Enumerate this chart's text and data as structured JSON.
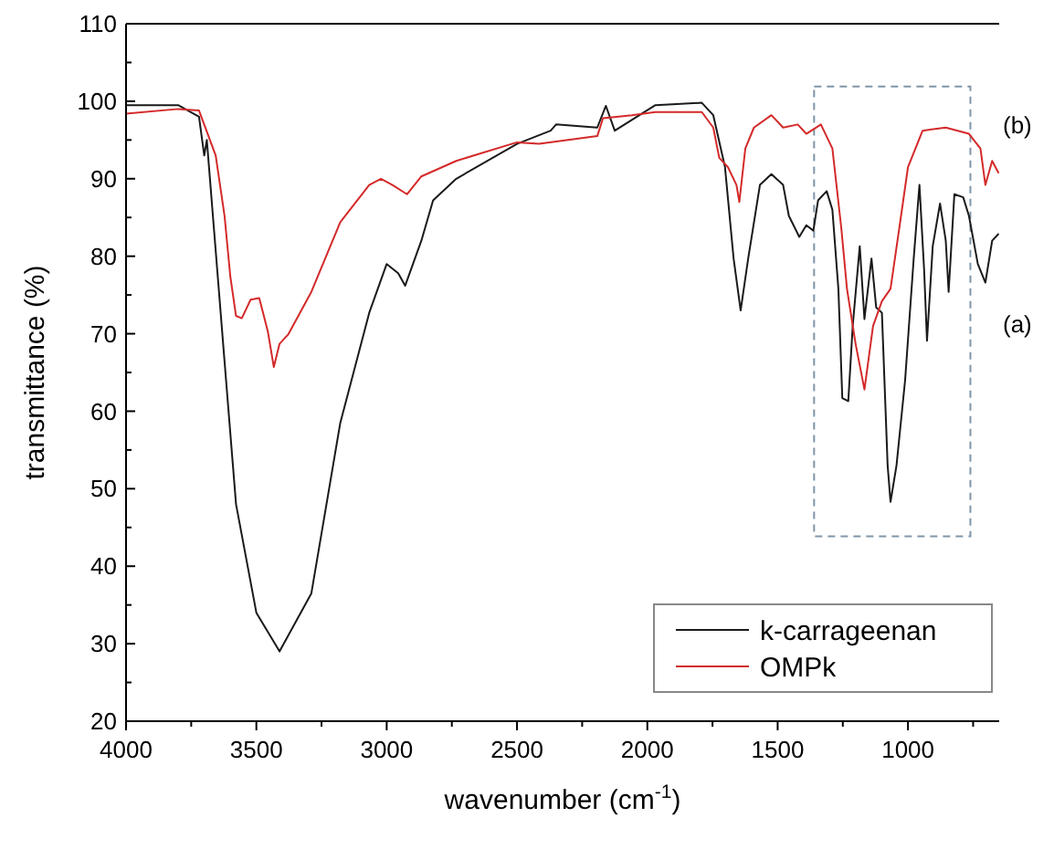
{
  "chart_data": {
    "type": "line",
    "xlabel": "wavenumber (cm$^{-1}$)",
    "ylabel": "transmittance (%)",
    "xlim": [
      4000,
      650
    ],
    "xticks": [
      4000,
      3500,
      3000,
      2500,
      2000,
      1500,
      1000
    ],
    "ylim": [
      20,
      110
    ],
    "yticks": [
      20,
      30,
      40,
      50,
      60,
      70,
      80,
      90,
      100,
      110
    ],
    "grid": false,
    "legend": "bottom right",
    "marker": "none",
    "line_style": "solid",
    "annotations": [
      "(b)",
      "(a)"
    ],
    "series": [
      {
        "name": "k-carrageenan",
        "color": "#1a1a1a",
        "x": [
          4000,
          3800,
          3720,
          3700,
          3690,
          3622,
          3578,
          3500,
          3411,
          3289,
          3178,
          3067,
          3000,
          2956,
          2929,
          2867,
          2822,
          2733,
          2500,
          2371,
          2350,
          2192,
          2159,
          2125,
          1969,
          1791,
          1747,
          1702,
          1669,
          1642,
          1613,
          1568,
          1524,
          1479,
          1457,
          1417,
          1390,
          1363,
          1345,
          1312,
          1290,
          1267,
          1252,
          1229,
          1212,
          1185,
          1167,
          1140,
          1122,
          1100,
          1078,
          1067,
          1044,
          1011,
          978,
          956,
          938,
          927,
          905,
          877,
          855,
          844,
          822,
          788,
          766,
          732,
          703,
          677,
          652
        ],
        "values": [
          99.5,
          99.5,
          98,
          93,
          95,
          66.4,
          48,
          34,
          29,
          36.5,
          58.5,
          72.7,
          79,
          77.8,
          76.2,
          82,
          87.2,
          90,
          94.5,
          96.2,
          97,
          96.6,
          99.4,
          96.2,
          99.5,
          99.8,
          98.2,
          91.5,
          79.7,
          73,
          79.7,
          89.2,
          90.6,
          89.2,
          85.2,
          82.5,
          84,
          83.3,
          87.2,
          88.4,
          86,
          75.8,
          61.7,
          61.3,
          71,
          81.3,
          71.9,
          79.7,
          73.4,
          72.7,
          53,
          48.3,
          53,
          64,
          79.7,
          89.2,
          78.2,
          69.1,
          81.3,
          86.8,
          82,
          75.4,
          88,
          87.6,
          85.2,
          79,
          76.6,
          82,
          82.9
        ]
      },
      {
        "name": "OMPk",
        "color": "#d42a2a",
        "x": [
          4000,
          3800,
          3720,
          3656,
          3622,
          3600,
          3578,
          3556,
          3522,
          3489,
          3456,
          3433,
          3411,
          3378,
          3289,
          3178,
          3067,
          3022,
          2978,
          2922,
          2867,
          2733,
          2500,
          2415,
          2192,
          2170,
          2059,
          1969,
          1791,
          1747,
          1724,
          1691,
          1658,
          1647,
          1624,
          1591,
          1524,
          1479,
          1423,
          1390,
          1334,
          1290,
          1256,
          1234,
          1201,
          1167,
          1134,
          1100,
          1067,
          1033,
          1000,
          944,
          855,
          766,
          722,
          703,
          677,
          652
        ],
        "values": [
          98.4,
          99,
          98.8,
          93,
          85.2,
          77.4,
          72.3,
          72,
          74.4,
          74.6,
          70.3,
          65.7,
          68.7,
          69.9,
          75.4,
          84.4,
          89.2,
          90,
          89.2,
          88,
          90.3,
          92.3,
          94.7,
          94.5,
          95.5,
          97.8,
          98.2,
          98.6,
          98.6,
          96.6,
          92.7,
          91.5,
          89.2,
          87,
          93.9,
          96.6,
          98.2,
          96.6,
          97,
          95.8,
          97,
          93.9,
          83.7,
          75.8,
          68.7,
          62.8,
          71,
          74.2,
          75.8,
          83.7,
          91.5,
          96.2,
          96.6,
          95.8,
          93.9,
          89.2,
          92.3,
          90.7
        ]
      }
    ]
  }
}
